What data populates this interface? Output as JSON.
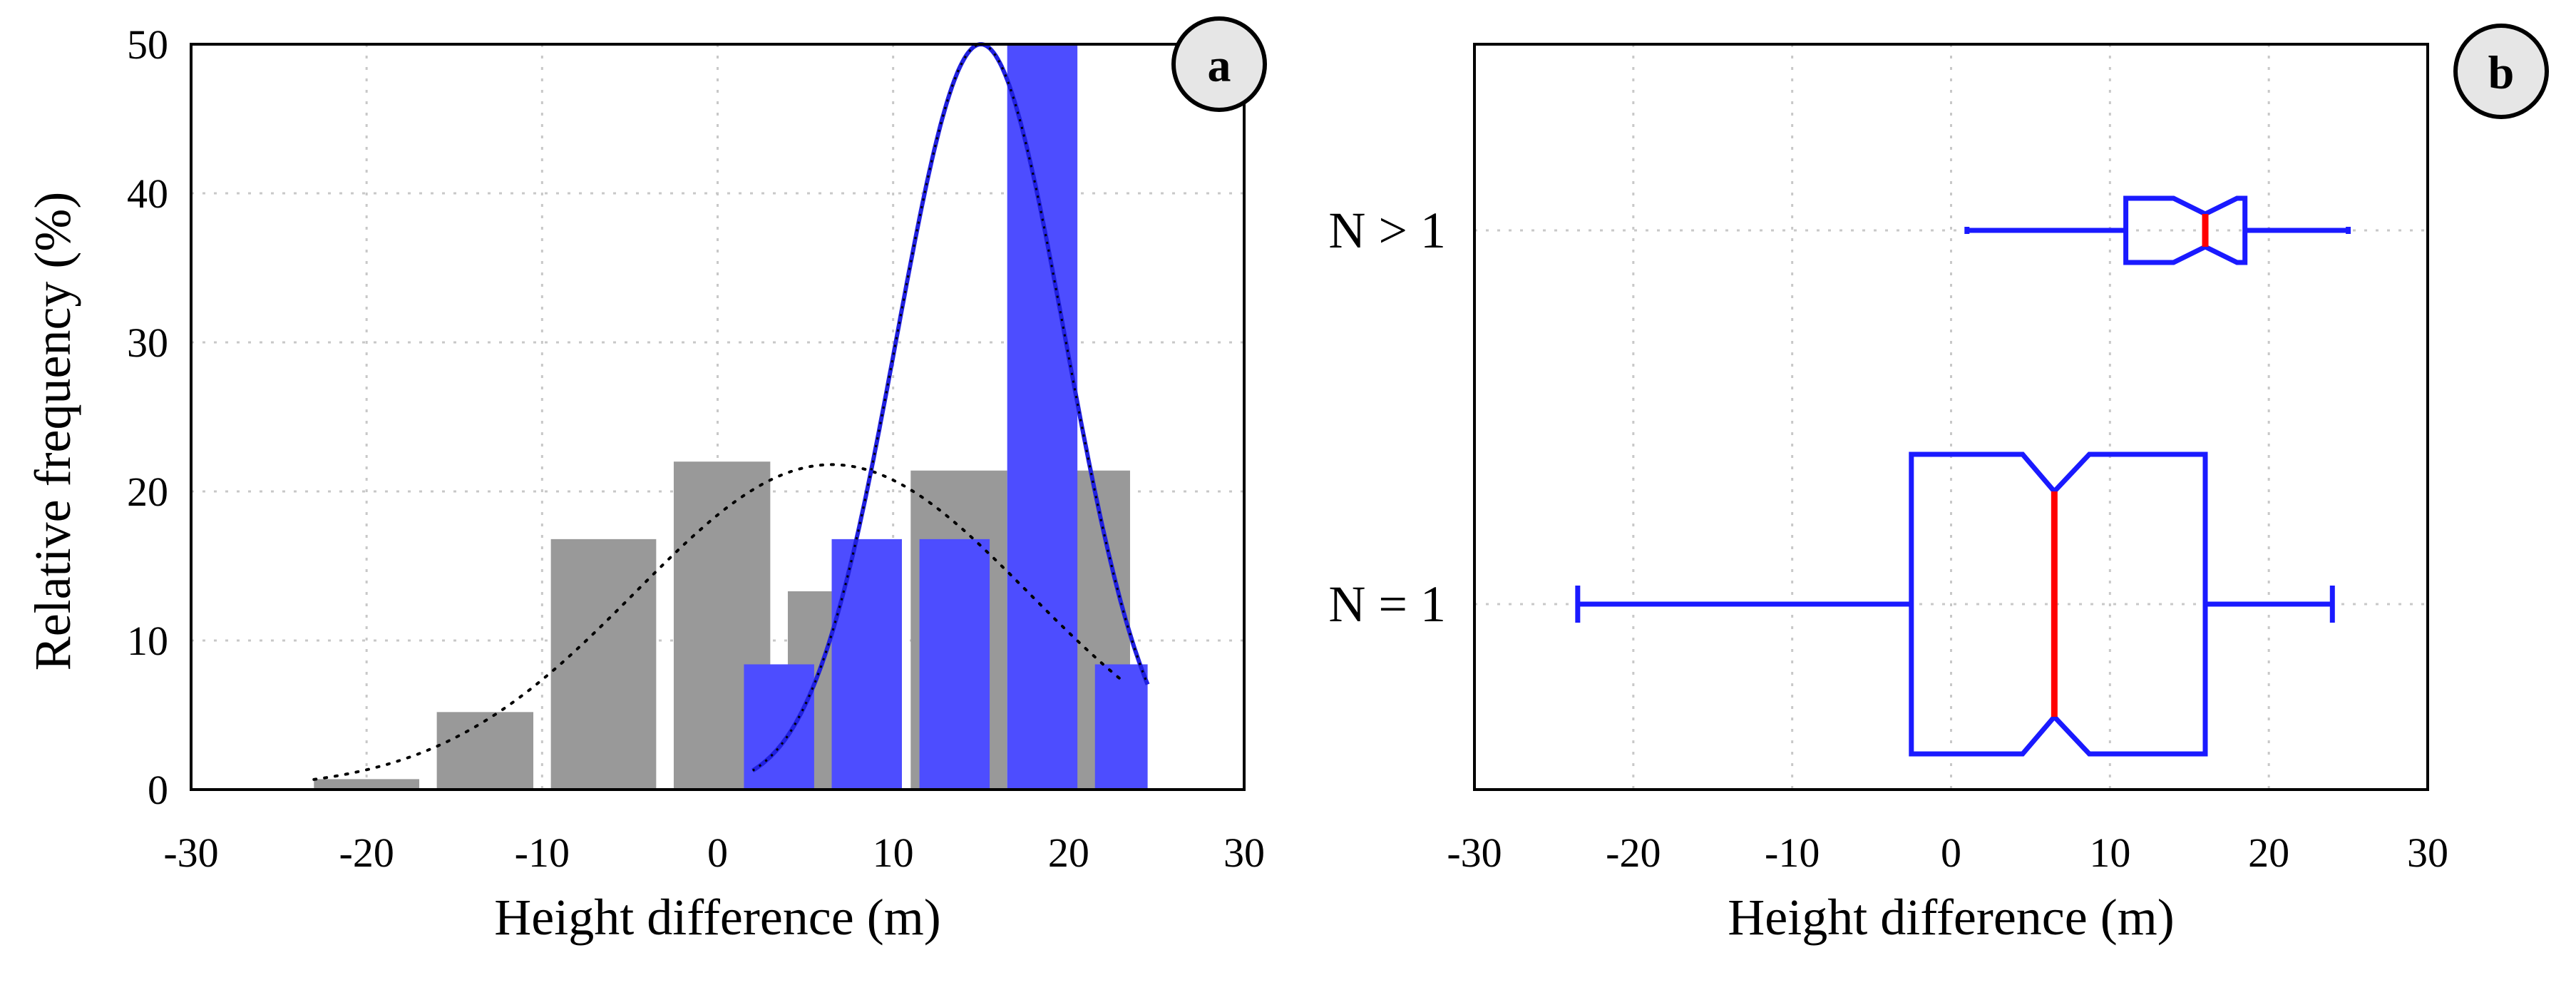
{
  "chart_data": [
    {
      "type": "bar",
      "panel": "a",
      "xlabel": "Height difference (m)",
      "ylabel": "Relative frequency (%)",
      "xlim": [
        -30,
        30
      ],
      "ylim": [
        0,
        50
      ],
      "xticks": [
        -30,
        -20,
        -10,
        0,
        10,
        20,
        30
      ],
      "yticks": [
        0,
        10,
        20,
        30,
        40,
        50
      ],
      "grid": true,
      "series": [
        {
          "name": "N = 1",
          "color": "#999999",
          "bins": [
            {
              "from": -23,
              "to": -17,
              "value": 0.7
            },
            {
              "from": -16,
              "to": -10.5,
              "value": 5.2
            },
            {
              "from": -9.5,
              "to": -3.5,
              "value": 16.8
            },
            {
              "from": -2.5,
              "to": 3,
              "value": 22.0
            },
            {
              "from": 4,
              "to": 9,
              "value": 13.3
            },
            {
              "from": 11,
              "to": 16.5,
              "value": 21.4
            },
            {
              "from": 19.5,
              "to": 23.5,
              "value": 21.4
            }
          ],
          "fit": {
            "mean": 6.5,
            "sd": 11.2,
            "peak": 21.8,
            "from": -23,
            "to": 23
          }
        },
        {
          "name": "N > 1",
          "color": "#4d4dff",
          "bins": [
            {
              "from": 1.5,
              "to": 5.5,
              "value": 8.4
            },
            {
              "from": 6.5,
              "to": 10.5,
              "value": 16.8
            },
            {
              "from": 11.5,
              "to": 15.5,
              "value": 16.8
            },
            {
              "from": 16.5,
              "to": 20.5,
              "value": 50.0
            },
            {
              "from": 21.5,
              "to": 24.5,
              "value": 8.4
            }
          ],
          "fit": {
            "mean": 15.0,
            "sd": 4.8,
            "peak": 50.0,
            "from": 2,
            "to": 24.5
          }
        }
      ]
    },
    {
      "type": "box",
      "panel": "b",
      "xlabel": "Height difference (m)",
      "xlim": [
        -30,
        30
      ],
      "xticks": [
        -30,
        -20,
        -10,
        0,
        10,
        20,
        30
      ],
      "grid": true,
      "categories": [
        "N > 1",
        "N = 1"
      ],
      "boxes": [
        {
          "label": "N > 1",
          "whisker_low": 1,
          "q1": 11,
          "median": 16,
          "q3": 18.5,
          "whisker_high": 25,
          "notch_low": 14,
          "notch_high": 18
        },
        {
          "label": "N = 1",
          "whisker_low": -23.5,
          "q1": -2.5,
          "median": 6.5,
          "q3": 16,
          "whisker_high": 24,
          "notch_low": 4.5,
          "notch_high": 8.7
        }
      ],
      "box_color": "#1a1aff",
      "median_color": "#ff0000"
    }
  ],
  "badges": {
    "a": "a",
    "b": "b"
  }
}
